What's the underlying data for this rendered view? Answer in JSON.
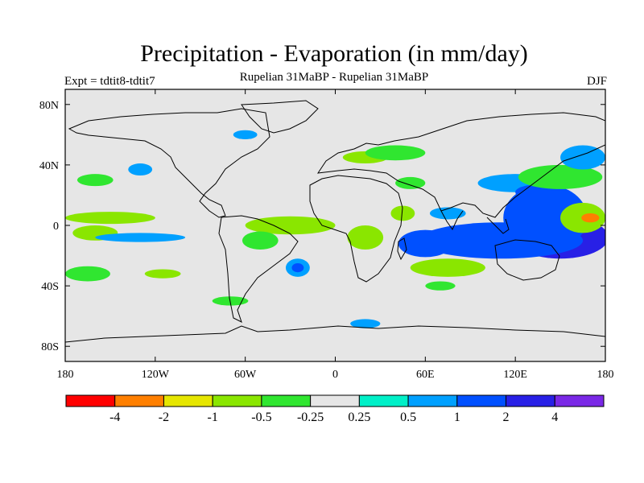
{
  "figure": {
    "title": "Precipitation - Evaporation (in mm/day)",
    "subtitle": "Rupelian  31MaBP - Rupelian  31MaBP",
    "left_label": "Expt = tdtit8-tdtit7",
    "right_label": "DJF"
  },
  "chart_data": {
    "type": "heatmap",
    "projection": "cylindrical-equidistant",
    "lon_range": [
      -180,
      180
    ],
    "lat_range": [
      -90,
      90
    ],
    "x_ticks": [
      {
        "value": -180,
        "label": "180"
      },
      {
        "value": -120,
        "label": "120W"
      },
      {
        "value": -60,
        "label": "60W"
      },
      {
        "value": 0,
        "label": "0"
      },
      {
        "value": 60,
        "label": "60E"
      },
      {
        "value": 120,
        "label": "120E"
      },
      {
        "value": 180,
        "label": "180"
      }
    ],
    "y_ticks": [
      {
        "value": 80,
        "label": "80N"
      },
      {
        "value": 40,
        "label": "40N"
      },
      {
        "value": 0,
        "label": "0"
      },
      {
        "value": -40,
        "label": "40S"
      },
      {
        "value": -80,
        "label": "80S"
      }
    ],
    "colorbar": {
      "colors": [
        "#ff0000",
        "#ff7f00",
        "#e6e600",
        "#8ae600",
        "#30e630",
        "#e6e6e6",
        "#00f0c8",
        "#00a0ff",
        "#0050ff",
        "#2820e6",
        "#7a28e6"
      ],
      "labels": [
        "-4",
        "-2",
        "-1",
        "-0.5",
        "-0.25",
        "0.25",
        "0.5",
        "1",
        "2",
        "4"
      ]
    },
    "background_color": "#e6e6e6",
    "regions": [
      {
        "lon": 150,
        "lat": -8,
        "rx": 32,
        "ry": 14,
        "level": "2"
      },
      {
        "lon": 140,
        "lat": 2,
        "rx": 16,
        "ry": 14,
        "level": "4"
      },
      {
        "lon": 105,
        "lat": -10,
        "rx": 40,
        "ry": 8,
        "level": "2"
      },
      {
        "lon": 100,
        "lat": -9,
        "rx": 18,
        "ry": 4,
        "level": "4"
      },
      {
        "lon": 60,
        "lat": -12,
        "rx": 18,
        "ry": 9,
        "level": "1"
      },
      {
        "lon": 140,
        "lat": 5,
        "rx": 28,
        "ry": 22,
        "level": "1"
      },
      {
        "lon": 110,
        "lat": -10,
        "rx": 55,
        "ry": 12,
        "level": "1"
      },
      {
        "lon": 120,
        "lat": 28,
        "rx": 25,
        "ry": 6,
        "level": "0.5"
      },
      {
        "lon": 135,
        "lat": 22,
        "rx": 15,
        "ry": 5,
        "level": "1"
      },
      {
        "lon": 165,
        "lat": 5,
        "rx": 15,
        "ry": 10,
        "level": "-0.5"
      },
      {
        "lon": 170,
        "lat": 5,
        "rx": 6,
        "ry": 3,
        "level": "-2"
      },
      {
        "lon": 150,
        "lat": 32,
        "rx": 28,
        "ry": 8,
        "level": "-0.25"
      },
      {
        "lon": 165,
        "lat": 45,
        "rx": 15,
        "ry": 8,
        "level": "0.5"
      },
      {
        "lon": -150,
        "lat": 5,
        "rx": 30,
        "ry": 4,
        "level": "-0.5"
      },
      {
        "lon": -160,
        "lat": -5,
        "rx": 15,
        "ry": 5,
        "level": "-0.5"
      },
      {
        "lon": -130,
        "lat": -8,
        "rx": 30,
        "ry": 3,
        "level": "0.5"
      },
      {
        "lon": -160,
        "lat": 30,
        "rx": 12,
        "ry": 4,
        "level": "-0.25"
      },
      {
        "lon": -130,
        "lat": 37,
        "rx": 8,
        "ry": 4,
        "level": "0.5"
      },
      {
        "lon": -165,
        "lat": -32,
        "rx": 15,
        "ry": 5,
        "level": "-0.25"
      },
      {
        "lon": -115,
        "lat": -32,
        "rx": 12,
        "ry": 3,
        "level": "-0.5"
      },
      {
        "lon": -70,
        "lat": -50,
        "rx": 12,
        "ry": 3,
        "level": "-0.25"
      },
      {
        "lon": -30,
        "lat": 0,
        "rx": 30,
        "ry": 6,
        "level": "-0.5"
      },
      {
        "lon": -50,
        "lat": -10,
        "rx": 12,
        "ry": 6,
        "level": "-0.25"
      },
      {
        "lon": -25,
        "lat": -28,
        "rx": 8,
        "ry": 6,
        "level": "0.5"
      },
      {
        "lon": -25,
        "lat": -28,
        "rx": 4,
        "ry": 3,
        "level": "1"
      },
      {
        "lon": 20,
        "lat": -8,
        "rx": 12,
        "ry": 8,
        "level": "-0.5"
      },
      {
        "lon": 45,
        "lat": 8,
        "rx": 8,
        "ry": 5,
        "level": "-0.5"
      },
      {
        "lon": 20,
        "lat": 45,
        "rx": 15,
        "ry": 4,
        "level": "-0.5"
      },
      {
        "lon": 40,
        "lat": 48,
        "rx": 20,
        "ry": 5,
        "level": "-0.25"
      },
      {
        "lon": 50,
        "lat": 28,
        "rx": 10,
        "ry": 4,
        "level": "-0.25"
      },
      {
        "lon": 75,
        "lat": 8,
        "rx": 12,
        "ry": 4,
        "level": "0.5"
      },
      {
        "lon": 75,
        "lat": -28,
        "rx": 25,
        "ry": 6,
        "level": "-0.5"
      },
      {
        "lon": 70,
        "lat": -40,
        "rx": 10,
        "ry": 3,
        "level": "-0.25"
      },
      {
        "lon": 20,
        "lat": -65,
        "rx": 10,
        "ry": 3,
        "level": "0.5"
      },
      {
        "lon": -60,
        "lat": 60,
        "rx": 8,
        "ry": 3,
        "level": "0.5"
      }
    ]
  }
}
